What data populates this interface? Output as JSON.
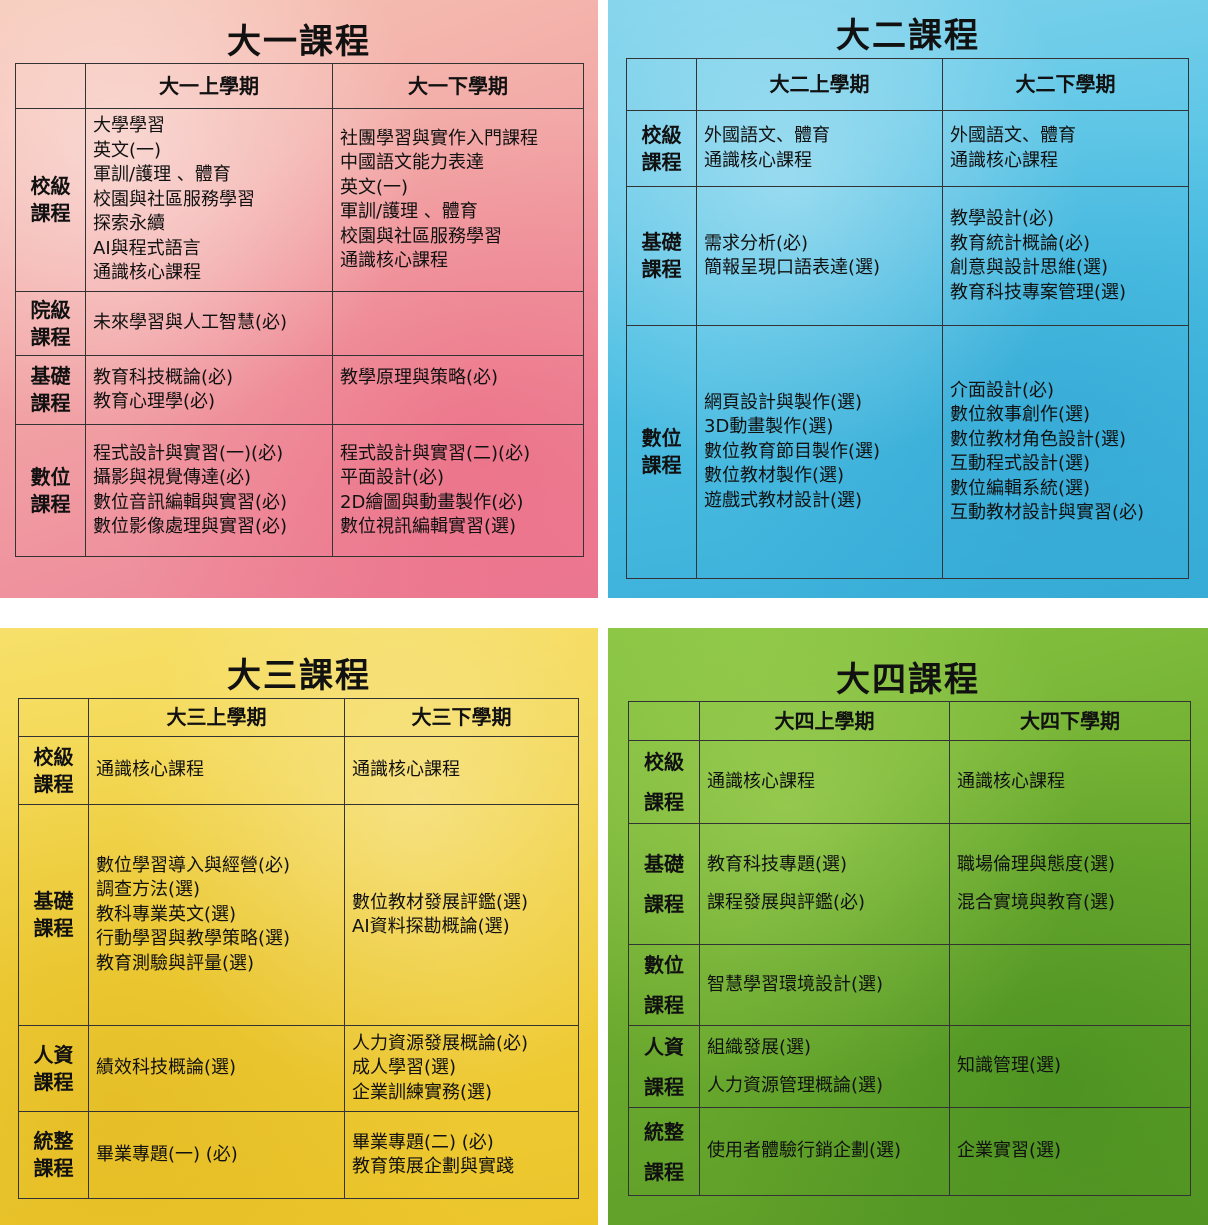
{
  "year1": {
    "title": "大一課程",
    "headers": [
      "大一上學期",
      "大一下學期"
    ],
    "rows": [
      {
        "category": [
          "校級",
          "課程"
        ],
        "sem1": [
          "大學學習",
          "英文(一)",
          "軍訓/護理 、體育",
          "校園與社區服務學習",
          "探索永續",
          "AI與程式語言",
          "通識核心課程"
        ],
        "sem2": [
          "社團學習與實作入門課程",
          "中國語文能力表達",
          "英文(一)",
          "軍訓/護理 、體育",
          "校園與社區服務學習",
          "通識核心課程"
        ]
      },
      {
        "category": [
          "院級",
          "課程"
        ],
        "sem1": [
          "未來學習與人工智慧(必)"
        ],
        "sem2": []
      },
      {
        "category": [
          "基礎",
          "課程"
        ],
        "sem1": [
          "教育科技概論(必)",
          "教育心理學(必)"
        ],
        "sem2": [
          "教學原理與策略(必)"
        ]
      },
      {
        "category": [
          "數位",
          "課程"
        ],
        "sem1": [
          "程式設計與實習(一)(必)",
          "攝影與視覺傳達(必)",
          "數位音訊編輯與實習(必)",
          "數位影像處理與實習(必)"
        ],
        "sem2": [
          "程式設計與實習(二)(必)",
          "平面設計(必)",
          "2D繪圖與動畫製作(必)",
          "數位視訊編輯實習(選)"
        ]
      }
    ]
  },
  "year2": {
    "title": "大二課程",
    "headers": [
      "大二上學期",
      "大二下學期"
    ],
    "rows": [
      {
        "category": [
          "校級",
          "課程"
        ],
        "sem1": [
          "外國語文、體育",
          "通識核心課程"
        ],
        "sem2": [
          "外國語文、體育",
          "通識核心課程"
        ]
      },
      {
        "category": [
          "基礎",
          "課程"
        ],
        "sem1": [
          "需求分析(必)",
          "簡報呈現口語表達(選)"
        ],
        "sem2": [
          "教學設計(必)",
          "教育統計概論(必)",
          "創意與設計思維(選)",
          "教育科技專案管理(選)"
        ]
      },
      {
        "category": [
          "數位",
          "課程"
        ],
        "sem1": [
          "網頁設計與製作(選)",
          "3D動畫製作(選)",
          "數位教育節目製作(選)",
          "數位教材製作(選)",
          "遊戲式教材設計(選)"
        ],
        "sem2": [
          "介面設計(必)",
          "數位敘事創作(選)",
          "數位教材角色設計(選)",
          "互動程式設計(選)",
          "數位編輯系統(選)",
          "互動教材設計與實習(必)"
        ]
      }
    ]
  },
  "year3": {
    "title": "大三課程",
    "headers": [
      "大三上學期",
      "大三下學期"
    ],
    "rows": [
      {
        "category": [
          "校級",
          "課程"
        ],
        "sem1": [
          "通識核心課程"
        ],
        "sem2": [
          "通識核心課程"
        ]
      },
      {
        "category": [
          "基礎",
          "課程"
        ],
        "sem1": [
          "數位學習導入與經營(必)",
          "調查方法(選)",
          "教科專業英文(選)",
          "行動學習與教學策略(選)",
          "教育測驗與評量(選)"
        ],
        "sem2": [
          "數位教材發展評鑑(選)",
          "AI資料探勘概論(選)"
        ]
      },
      {
        "category": [
          "人資",
          "課程"
        ],
        "sem1": [
          "績效科技概論(選)"
        ],
        "sem2": [
          "人力資源發展概論(必)",
          "成人學習(選)",
          "企業訓練實務(選)"
        ]
      },
      {
        "category": [
          "統整",
          "課程"
        ],
        "sem1": [
          "畢業專題(一) (必)"
        ],
        "sem2": [
          "畢業專題(二) (必)",
          "教育策展企劃與實踐"
        ]
      }
    ]
  },
  "year4": {
    "title": "大四課程",
    "headers": [
      "大四上學期",
      "大四下學期"
    ],
    "rows": [
      {
        "category": [
          "校級",
          "課程"
        ],
        "sem1": [
          "通識核心課程"
        ],
        "sem2": [
          "通識核心課程"
        ]
      },
      {
        "category": [
          "基礎",
          "課程"
        ],
        "sem1": [
          "教育科技專題(選)",
          "課程發展與評鑑(必)"
        ],
        "sem2": [
          "職場倫理與態度(選)",
          "混合實境與教育(選)"
        ]
      },
      {
        "category": [
          "數位",
          "課程"
        ],
        "sem1": [
          "智慧學習環境設計(選)"
        ],
        "sem2": []
      },
      {
        "category": [
          "人資",
          "課程"
        ],
        "sem1": [
          "組織發展(選)",
          "人力資源管理概論(選)"
        ],
        "sem2": [
          "知識管理(選)"
        ]
      },
      {
        "category": [
          "統整",
          "課程"
        ],
        "sem1": [
          "使用者體驗行銷企劃(選)"
        ],
        "sem2": [
          "企業實習(選)"
        ]
      }
    ]
  }
}
